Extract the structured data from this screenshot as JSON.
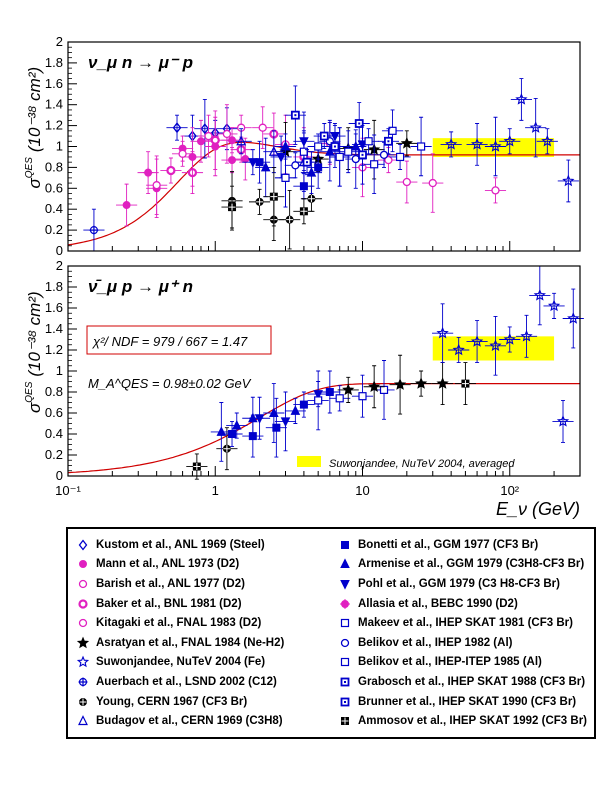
{
  "chart_data": [
    {
      "type": "scatter",
      "panel": "top",
      "reaction": "ν_μ n → μ⁻ p",
      "ylim": [
        0,
        2
      ],
      "y_ticks": [
        "0",
        "0.2",
        "0.4",
        "0.6",
        "0.8",
        "1",
        "1.2",
        "1.4",
        "1.6",
        "1.8",
        "2"
      ],
      "x_scale": "log",
      "xlim": [
        0.1,
        300
      ],
      "ylabel_prefix": "σ",
      "ylabel_super": "QES",
      "ylabel_units": "(10⁻³⁸ cm²)",
      "band": {
        "x": [
          30,
          200
        ],
        "y": [
          0.9,
          1.08
        ],
        "color": "#ffff00"
      },
      "theory_curve": {
        "color": "#d00000",
        "asymptote": 0.92
      },
      "series": [
        {
          "name": "Kustom et al., ANL 1969 (Steel)",
          "color": "#0000cc",
          "marker": "diamond-open",
          "points": [
            [
              0.55,
              1.18
            ],
            [
              0.7,
              1.1
            ],
            [
              0.85,
              1.17
            ],
            [
              1.0,
              1.13
            ],
            [
              1.2,
              1.17
            ]
          ]
        },
        {
          "name": "Mann et al., ANL 1973 (D2)",
          "color": "#e020c0",
          "marker": "circle-filled",
          "points": [
            [
              0.25,
              0.44
            ],
            [
              0.4,
              0.6
            ],
            [
              0.6,
              0.98
            ],
            [
              0.8,
              1.05
            ],
            [
              1.0,
              1.0
            ],
            [
              1.3,
              0.87
            ],
            [
              1.6,
              0.88
            ]
          ]
        },
        {
          "name": "Barish et al., ANL 1977 (D2)",
          "color": "#e020c0",
          "marker": "circle-open",
          "points": [
            [
              0.4,
              0.63
            ],
            [
              0.6,
              0.93
            ],
            [
              0.9,
              1.1
            ],
            [
              1.2,
              1.12
            ],
            [
              1.5,
              1.18
            ],
            [
              2.1,
              1.18
            ],
            [
              3.0,
              1.02
            ]
          ]
        },
        {
          "name": "Baker et al., BNL 1981 (D2)",
          "color": "#e020c0",
          "marker": "circle-open-thick",
          "points": [
            [
              0.5,
              0.77
            ],
            [
              0.7,
              0.75
            ],
            [
              1.0,
              1.06
            ],
            [
              1.5,
              0.97
            ],
            [
              2.5,
              1.12
            ],
            [
              4.0,
              0.9
            ]
          ]
        },
        {
          "name": "Kitagaki et al., FNAL 1983 (D2)",
          "color": "#e020c0",
          "marker": "circle-open",
          "points": [
            [
              6,
              1.03
            ],
            [
              10,
              0.8
            ],
            [
              15,
              0.87
            ],
            [
              20,
              0.66
            ],
            [
              30,
              0.65
            ],
            [
              80,
              0.58
            ]
          ]
        },
        {
          "name": "Asratyan et al., FNAL 1984 (Ne-H2)",
          "color": "#000000",
          "marker": "star",
          "points": [
            [
              3,
              0.95
            ],
            [
              5,
              0.88
            ],
            [
              8,
              0.98
            ],
            [
              12,
              0.97
            ],
            [
              20,
              1.03
            ]
          ]
        },
        {
          "name": "Suwonjandee, NuTeV 2004 (Fe)",
          "color": "#0000cc",
          "marker": "star-open",
          "points": [
            [
              40,
              1.02
            ],
            [
              60,
              1.02
            ],
            [
              80,
              1.0
            ],
            [
              100,
              1.05
            ],
            [
              120,
              1.45
            ],
            [
              150,
              1.18
            ],
            [
              180,
              1.05
            ],
            [
              250,
              0.67
            ]
          ]
        },
        {
          "name": "Auerbach et al., LSND 2002 (C12)",
          "color": "#0000cc",
          "marker": "cross-circle",
          "points": [
            [
              0.15,
              0.2
            ]
          ]
        },
        {
          "name": "Young, CERN 1967 (CF3 Br)",
          "color": "#000000",
          "marker": "circle-cross",
          "points": [
            [
              1.3,
              0.48
            ],
            [
              2.0,
              0.47
            ],
            [
              2.5,
              0.3
            ],
            [
              3.2,
              0.3
            ],
            [
              4.5,
              0.5
            ]
          ]
        },
        {
          "name": "Budagov et al., CERN 1969 (C3H8)",
          "color": "#0000cc",
          "marker": "triangle-open",
          "points": [
            [
              1.5,
              1.05
            ],
            [
              2.5,
              0.95
            ],
            [
              4.0,
              0.85
            ]
          ]
        },
        {
          "name": "Bonetti et al., GGM 1977 (CF3 Br)",
          "color": "#0000cc",
          "marker": "square-filled",
          "points": [
            [
              2.0,
              0.85
            ],
            [
              3.0,
              0.7
            ],
            [
              4.0,
              0.62
            ],
            [
              5.0,
              0.8
            ],
            [
              7.0,
              0.9
            ]
          ]
        },
        {
          "name": "Armenise et al., GGM 1979 (C3H8-CF3 Br)",
          "color": "#0000cc",
          "marker": "triangle-filled",
          "points": [
            [
              2.2,
              0.8
            ],
            [
              3.0,
              1.0
            ],
            [
              4.5,
              0.75
            ],
            [
              6,
              0.95
            ],
            [
              9,
              1.0
            ]
          ]
        },
        {
          "name": "Pohl et al., GGM 1979 (C3 H8-CF3 Br)",
          "color": "#0000cc",
          "marker": "triangle-down",
          "points": [
            [
              1.8,
              0.85
            ],
            [
              2.8,
              0.9
            ],
            [
              4.0,
              1.05
            ],
            [
              6.5,
              1.1
            ],
            [
              10,
              1.02
            ]
          ]
        },
        {
          "name": "Allasia et al., BEBC 1990 (D2)",
          "color": "#e020c0",
          "marker": "asterisk",
          "points": [
            [
              0.35,
              0.75
            ],
            [
              0.7,
              0.9
            ],
            [
              1.3,
              1.06
            ]
          ]
        },
        {
          "name": "Makeev et al., IHEP SKAT 1981 (CF3 Br)",
          "color": "#0000cc",
          "marker": "square-open",
          "points": [
            [
              3.0,
              0.7
            ],
            [
              5.0,
              1.0
            ],
            [
              8.0,
              0.95
            ],
            [
              12,
              0.83
            ],
            [
              18,
              0.9
            ]
          ]
        },
        {
          "name": "Belikov et al., IHEP 1982 (Al)",
          "color": "#0000cc",
          "marker": "circle-open",
          "points": [
            [
              3.5,
              0.82
            ],
            [
              6.0,
              1.05
            ],
            [
              9.0,
              0.88
            ],
            [
              14,
              0.92
            ]
          ]
        },
        {
          "name": "Belikov et al., IHEP-ITEP 1985 (Al)",
          "color": "#0000cc",
          "marker": "square-open",
          "points": [
            [
              4.0,
              0.95
            ],
            [
              7.0,
              0.9
            ],
            [
              11,
              1.05
            ],
            [
              16,
              1.15
            ],
            [
              25,
              1.0
            ]
          ]
        },
        {
          "name": "Grabosch et al., IHEP SKAT 1988 (CF3 Br)",
          "color": "#0000cc",
          "marker": "square-dot",
          "points": [
            [
              3.5,
              1.3
            ],
            [
              5.5,
              1.1
            ],
            [
              9.5,
              1.22
            ]
          ]
        },
        {
          "name": "Brunner et al., IHEP SKAT 1990 (CF3 Br)",
          "color": "#0000cc",
          "marker": "square-dot",
          "points": [
            [
              4.2,
              0.85
            ],
            [
              6.5,
              1.0
            ],
            [
              10,
              0.92
            ],
            [
              15,
              1.05
            ]
          ]
        },
        {
          "name": "Ammosov et al., IHEP SKAT 1992 (CF3 Br)",
          "color": "#000000",
          "marker": "square-cross",
          "points": [
            [
              1.3,
              0.42
            ],
            [
              2.5,
              0.52
            ],
            [
              4.0,
              0.38
            ]
          ]
        }
      ]
    },
    {
      "type": "scatter",
      "panel": "bottom",
      "reaction": "ν̄_μ p → μ⁺ n",
      "ylim": [
        0,
        2
      ],
      "y_ticks": [
        "0",
        "0.2",
        "0.4",
        "0.6",
        "0.8",
        "1",
        "1.2",
        "1.4",
        "1.6",
        "1.8",
        "2"
      ],
      "x_scale": "log",
      "xlim": [
        0.1,
        300
      ],
      "x_ticks": [
        "10⁻¹",
        "1",
        "10",
        "10²"
      ],
      "ylabel_prefix": "σ",
      "ylabel_super": "QES",
      "ylabel_units": "(10⁻³⁸ cm²)",
      "xlabel": "E_ν (GeV)",
      "chi2_text": "χ²/ NDF = 979 / 667 = 1.47",
      "ma_text": "M_A^QES = 0.98±0.02 GeV",
      "band_label": "Suwonjandee, NuTeV 2004, averaged",
      "band": {
        "x": [
          30,
          200
        ],
        "y": [
          1.1,
          1.33
        ],
        "color": "#ffff00"
      },
      "theory_curve": {
        "color": "#d00000",
        "asymptote": 0.88
      },
      "series": [
        {
          "name": "Ammosov et al., IHEP SKAT 1992 (CF3 Br)",
          "color": "#000000",
          "marker": "square-cross",
          "points": [
            [
              0.75,
              0.09
            ]
          ]
        },
        {
          "name": "Young, CERN 1967 (CF3 Br)",
          "color": "#000000",
          "marker": "circle-cross",
          "points": [
            [
              1.2,
              0.26
            ]
          ]
        },
        {
          "name": "Armenise et al., GGM 1979 (C3H8-CF3 Br)",
          "color": "#0000cc",
          "marker": "triangle-filled",
          "points": [
            [
              1.1,
              0.42
            ],
            [
              1.4,
              0.48
            ],
            [
              1.8,
              0.55
            ],
            [
              2.5,
              0.6
            ],
            [
              3.5,
              0.62
            ]
          ]
        },
        {
          "name": "Bonetti et al., GGM 1977 (CF3 Br)",
          "color": "#0000cc",
          "marker": "square-filled",
          "points": [
            [
              1.3,
              0.4
            ],
            [
              1.8,
              0.38
            ],
            [
              2.6,
              0.46
            ],
            [
              4.0,
              0.68
            ],
            [
              6,
              0.8
            ]
          ]
        },
        {
          "name": "Pohl et al., GGM 1979 (C3 H8-CF3 Br)",
          "color": "#0000cc",
          "marker": "triangle-down",
          "points": [
            [
              2.0,
              0.55
            ],
            [
              3.0,
              0.52
            ],
            [
              5.0,
              0.78
            ]
          ]
        },
        {
          "name": "Makeev et al., IHEP SKAT 1981 (CF3 Br)",
          "color": "#0000cc",
          "marker": "square-open",
          "points": [
            [
              5,
              0.72
            ],
            [
              7,
              0.74
            ],
            [
              10,
              0.76
            ],
            [
              14,
              0.82
            ]
          ]
        },
        {
          "name": "Asratyan et al., FNAL 1984 (Ne-H2)",
          "color": "#000000",
          "marker": "star",
          "points": [
            [
              8,
              0.82
            ],
            [
              12,
              0.85
            ],
            [
              18,
              0.87
            ],
            [
              25,
              0.88
            ],
            [
              35,
              0.88
            ]
          ]
        },
        {
          "name": "Ammosov et al., IHEP SKAT 1992 (CF3 Br)",
          "color": "#000000",
          "marker": "square-cross",
          "points": [
            [
              50,
              0.88
            ]
          ]
        },
        {
          "name": "Suwonjandee, NuTeV 2004 (Fe)",
          "color": "#0000cc",
          "marker": "star-open",
          "points": [
            [
              35,
              1.36
            ],
            [
              45,
              1.2
            ],
            [
              60,
              1.28
            ],
            [
              80,
              1.24
            ],
            [
              100,
              1.3
            ],
            [
              130,
              1.33
            ],
            [
              160,
              1.72
            ],
            [
              200,
              1.62
            ],
            [
              230,
              0.52
            ],
            [
              270,
              1.5
            ]
          ]
        }
      ]
    }
  ],
  "legend": {
    "left": [
      {
        "label": "Kustom et al., ANL 1969 (Steel)",
        "color": "#0000cc",
        "marker": "diamond-open"
      },
      {
        "label": "Mann et al., ANL 1973 (D2)",
        "color": "#e020c0",
        "marker": "circle-filled"
      },
      {
        "label": "Barish et al., ANL 1977 (D2)",
        "color": "#e020c0",
        "marker": "circle-open"
      },
      {
        "label": "Baker et al., BNL 1981 (D2)",
        "color": "#e020c0",
        "marker": "circle-open-thick"
      },
      {
        "label": "Kitagaki et al., FNAL 1983 (D2)",
        "color": "#e020c0",
        "marker": "circle-open"
      },
      {
        "label": "Asratyan et al., FNAL 1984 (Ne-H2)",
        "color": "#000000",
        "marker": "star"
      },
      {
        "label": "Suwonjandee, NuTeV 2004 (Fe)",
        "color": "#0000cc",
        "marker": "star-open"
      },
      {
        "label": "Auerbach et al., LSND 2002 (C12)",
        "color": "#0000cc",
        "marker": "cross-circle"
      },
      {
        "label": "Young, CERN 1967 (CF3 Br)",
        "color": "#000000",
        "marker": "circle-cross"
      },
      {
        "label": "Budagov et al., CERN 1969 (C3H8)",
        "color": "#0000cc",
        "marker": "triangle-open"
      }
    ],
    "right": [
      {
        "label": "Bonetti et al., GGM 1977 (CF3 Br)",
        "color": "#0000cc",
        "marker": "square-filled"
      },
      {
        "label": "Armenise et al., GGM 1979 (C3H8-CF3 Br)",
        "color": "#0000cc",
        "marker": "triangle-filled"
      },
      {
        "label": "Pohl et al., GGM 1979 (C3 H8-CF3 Br)",
        "color": "#0000cc",
        "marker": "triangle-down"
      },
      {
        "label": "Allasia et al., BEBC 1990 (D2)",
        "color": "#e020c0",
        "marker": "asterisk"
      },
      {
        "label": "Makeev et al., IHEP SKAT 1981 (CF3 Br)",
        "color": "#0000cc",
        "marker": "square-open"
      },
      {
        "label": "Belikov et al., IHEP 1982 (Al)",
        "color": "#0000cc",
        "marker": "circle-open"
      },
      {
        "label": "Belikov et al., IHEP-ITEP 1985 (Al)",
        "color": "#0000cc",
        "marker": "square-open"
      },
      {
        "label": "Grabosch et al., IHEP SKAT 1988 (CF3 Br)",
        "color": "#0000cc",
        "marker": "square-dot"
      },
      {
        "label": "Brunner et al., IHEP SKAT 1990 (CF3 Br)",
        "color": "#0000cc",
        "marker": "square-dot"
      },
      {
        "label": "Ammosov et al., IHEP SKAT 1992 (CF3 Br)",
        "color": "#000000",
        "marker": "square-cross"
      }
    ]
  }
}
